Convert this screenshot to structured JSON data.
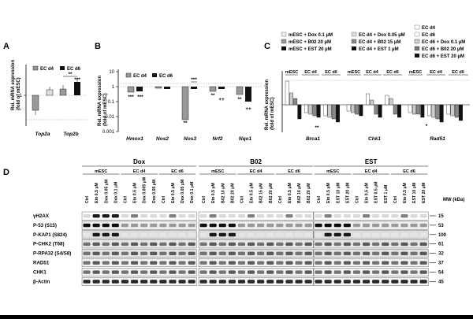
{
  "panels": {
    "a": {
      "letter": "A",
      "ylabel_1": "Rel. mRNA expression",
      "ylabel_2": "(fold of mESC)",
      "legend": [
        "EC d4",
        "EC d6"
      ],
      "yticks": [
        "1"
      ],
      "stars": [
        "**",
        "***"
      ]
    },
    "b": {
      "letter": "B",
      "ylabel_1": "Rel. mRNA expression",
      "ylabel_2": "(fold of mESC)",
      "legend": [
        "EC d4",
        "EC d6"
      ],
      "yticks": [
        "10",
        "1",
        "0.1",
        "0.01",
        "0.001"
      ],
      "stars": [
        "***",
        "***",
        "**",
        "***",
        "**",
        "++",
        "**",
        "++"
      ]
    },
    "c": {
      "letter": "C",
      "ylabel_1": "Rel. mRNA expression",
      "ylabel_2": "(fold of mESC)",
      "legend": [
        "mESC + Dox 0.1 µM",
        "EC d4 + Dox 0.05 µM",
        "mESC + B02 20 µM",
        "EC d4 + B02 15 µM",
        "mESC + EST 20 µM",
        "EC d4 + EST 1 µM",
        "EC d4",
        "EC d6",
        "EC d6 + Dox 0.1 µM",
        "EC d6 + B02 20 µM",
        "EC d6 + EST 20 µM"
      ],
      "group_labels": [
        "mESC",
        "EC d4",
        "EC d6"
      ],
      "stars": [
        "**",
        "*"
      ]
    },
    "d": {
      "letter": "D",
      "mw_header": "MW (kDa)",
      "groups": [
        {
          "title": "Dox",
          "subs": [
            "mESC",
            "EC d4",
            "EC d6"
          ],
          "lanes": [
            "Ctrl",
            "Eto 0.5 µM",
            "Dox 0.05 µM",
            "Dox 0.1 µM",
            "Ctrl",
            "Eto 0.5 µM",
            "Dox 0.005 µM",
            "Dox 0.05 µM",
            "Ctrl",
            "Eto 0.5 µM",
            "Dox 0.05 µM",
            "Dox 0.1 µM"
          ]
        },
        {
          "title": "B02",
          "subs": [
            "mESC",
            "EC d4",
            "EC d6"
          ],
          "lanes": [
            "Ctrl",
            "Eto 0.5 µM",
            "B02 10 µM",
            "B02 20 µM",
            "Ctrl",
            "Eto 0.5 µM",
            "B02 15 µM",
            "B02 20 µM",
            "Ctrl",
            "Eto 0.5 µM",
            "B02 10 µM",
            "B02 20 µM"
          ]
        },
        {
          "title": "EST",
          "subs": [
            "mESC",
            "EC d4",
            "EC d6"
          ],
          "lanes": [
            "Ctrl",
            "Eto 0.5 µM",
            "EST 10 µM",
            "EST 20 µM",
            "Ctrl",
            "Eto 0.5 µM",
            "EST 0.5 µM",
            "EST 1 µM",
            "Ctrl",
            "Eto 0.5 µM",
            "EST 10 µM",
            "EST 20 µM"
          ]
        }
      ],
      "rows": [
        {
          "label": "γH2AX",
          "mw": "15"
        },
        {
          "label": "P-53 (S15)",
          "mw": "53"
        },
        {
          "label": "P-KAP1 (S824)",
          "mw": "100"
        },
        {
          "label": "P-CHK2 (T68)",
          "mw": "61"
        },
        {
          "label": "P-RPA32 (S4/S8)",
          "mw": "32"
        },
        {
          "label": "RAD51",
          "mw": "37"
        },
        {
          "label": "CHK1",
          "mw": "54"
        },
        {
          "label": "β-Actin",
          "mw": "45"
        }
      ]
    }
  },
  "chart_data": [
    {
      "type": "bar",
      "title": "",
      "ylabel": "Rel. mRNA expression (fold of mESC)",
      "categories": [
        "Top2a",
        "Top2b"
      ],
      "series": [
        {
          "name": "EC d4",
          "values": [
            0.55,
            1.3
          ]
        },
        {
          "name": "EC d6",
          "values": [
            1.3,
            2.5
          ]
        }
      ]
    },
    {
      "type": "bar",
      "title": "",
      "ylabel": "Rel. mRNA expression (fold of mESC)",
      "y_scale": "log",
      "ylim": [
        0.001,
        10
      ],
      "categories": [
        "Hmox1",
        "Nos2",
        "Nos3",
        "Nrf2",
        "Nqo1"
      ],
      "series": [
        {
          "name": "EC d4",
          "values": [
            0.45,
            0.8,
            0.006,
            0.5,
            0.3
          ]
        },
        {
          "name": "EC d6",
          "values": [
            0.5,
            0.7,
            0.7,
            0.75,
            0.1
          ]
        }
      ]
    },
    {
      "type": "bar",
      "title": "",
      "ylabel": "Rel. mRNA expression (fold of mESC)",
      "categories": [
        "Brca1",
        "Chk1",
        "Rad51"
      ],
      "x_groups": [
        "mESC",
        "EC d4",
        "EC d6"
      ]
    }
  ]
}
